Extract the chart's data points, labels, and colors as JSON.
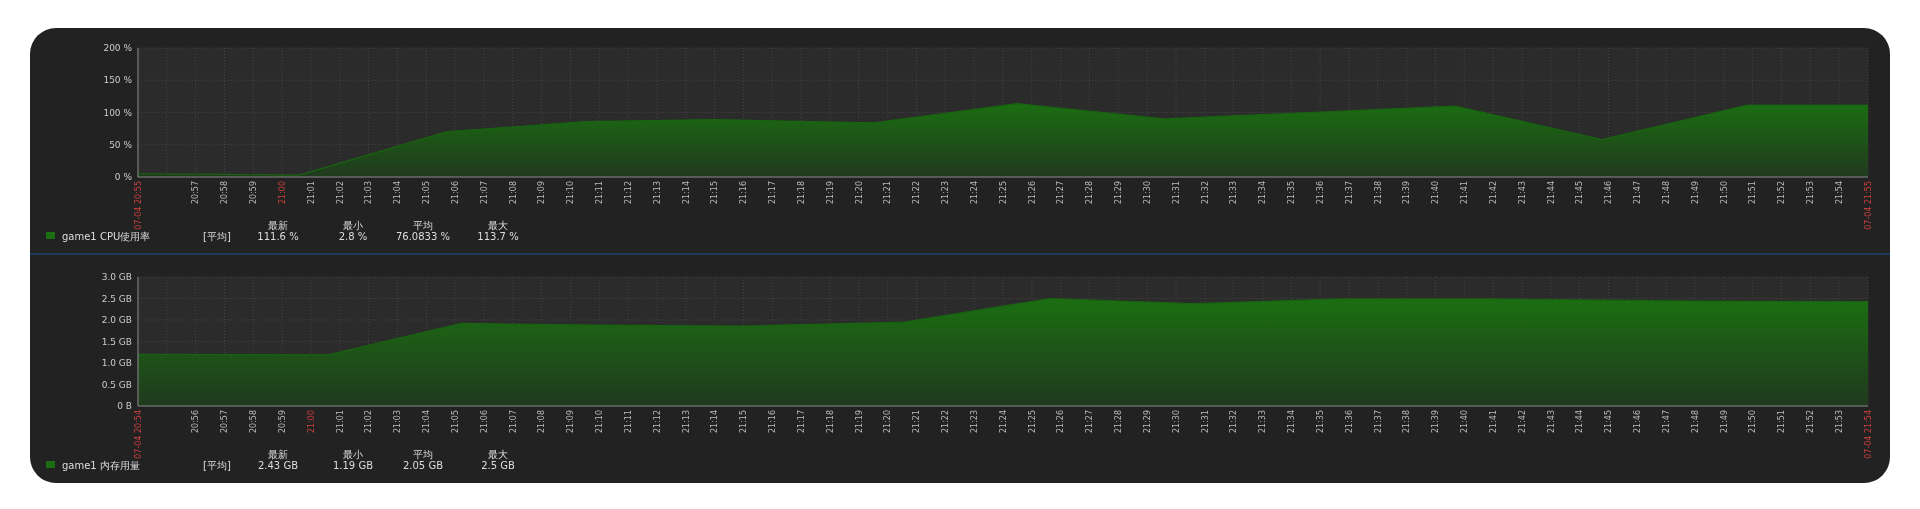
{
  "chart_data": [
    {
      "type": "area",
      "xlim": [
        20.9167,
        21.9167
      ],
      "ylim": [
        0,
        200
      ],
      "yticks": [
        {
          "value": 0,
          "label": "0 %"
        },
        {
          "value": 50,
          "label": "50 %"
        },
        {
          "value": 100,
          "label": "100 %"
        },
        {
          "value": 150,
          "label": "150 %"
        },
        {
          "value": 200,
          "label": "200 %"
        }
      ],
      "xticks": [
        {
          "value": 20.9167,
          "label": "07-04 20:55"
        },
        {
          "value": 20.9333,
          "label": null
        },
        {
          "value": 20.95,
          "label": "20:57"
        },
        {
          "value": 20.9667,
          "label": "20:58"
        },
        {
          "value": 20.9833,
          "label": "20:59"
        },
        {
          "value": 21,
          "label": "21:00"
        },
        {
          "value": 21.0167,
          "label": "21:01"
        },
        {
          "value": 21.0333,
          "label": "21:02"
        },
        {
          "value": 21.05,
          "label": "21:03"
        },
        {
          "value": 21.0667,
          "label": "21:04"
        },
        {
          "value": 21.0833,
          "label": "21:05"
        },
        {
          "value": 21.1,
          "label": "21:06"
        },
        {
          "value": 21.1167,
          "label": "21:07"
        },
        {
          "value": 21.1333,
          "label": "21:08"
        },
        {
          "value": 21.15,
          "label": "21:09"
        },
        {
          "value": 21.1667,
          "label": "21:10"
        },
        {
          "value": 21.1833,
          "label": "21:11"
        },
        {
          "value": 21.2,
          "label": "21:12"
        },
        {
          "value": 21.2167,
          "label": "21:13"
        },
        {
          "value": 21.2333,
          "label": "21:14"
        },
        {
          "value": 21.25,
          "label": "21:15"
        },
        {
          "value": 21.2667,
          "label": "21:16"
        },
        {
          "value": 21.2833,
          "label": "21:17"
        },
        {
          "value": 21.3,
          "label": "21:18"
        },
        {
          "value": 21.3167,
          "label": "21:19"
        },
        {
          "value": 21.3333,
          "label": "21:20"
        },
        {
          "value": 21.35,
          "label": "21:21"
        },
        {
          "value": 21.3667,
          "label": "21:22"
        },
        {
          "value": 21.3833,
          "label": "21:23"
        },
        {
          "value": 21.4,
          "label": "21:24"
        },
        {
          "value": 21.4167,
          "label": "21:25"
        },
        {
          "value": 21.4333,
          "label": "21:26"
        },
        {
          "value": 21.45,
          "label": "21:27"
        },
        {
          "value": 21.4667,
          "label": "21:28"
        },
        {
          "value": 21.4833,
          "label": "21:29"
        },
        {
          "value": 21.5,
          "label": "21:30"
        },
        {
          "value": 21.5167,
          "label": "21:31"
        },
        {
          "value": 21.5333,
          "label": "21:32"
        },
        {
          "value": 21.55,
          "label": "21:33"
        },
        {
          "value": 21.5667,
          "label": "21:34"
        },
        {
          "value": 21.5833,
          "label": "21:35"
        },
        {
          "value": 21.6,
          "label": "21:36"
        },
        {
          "value": 21.6167,
          "label": "21:37"
        },
        {
          "value": 21.6333,
          "label": "21:38"
        },
        {
          "value": 21.65,
          "label": "21:39"
        },
        {
          "value": 21.6667,
          "label": "21:40"
        },
        {
          "value": 21.6833,
          "label": "21:41"
        },
        {
          "value": 21.7,
          "label": "21:42"
        },
        {
          "value": 21.7167,
          "label": "21:43"
        },
        {
          "value": 21.7333,
          "label": "21:44"
        },
        {
          "value": 21.75,
          "label": "21:45"
        },
        {
          "value": 21.7667,
          "label": "21:46"
        },
        {
          "value": 21.7833,
          "label": "21:47"
        },
        {
          "value": 21.8,
          "label": "21:48"
        },
        {
          "value": 21.8167,
          "label": "21:49"
        },
        {
          "value": 21.8333,
          "label": "21:50"
        },
        {
          "value": 21.85,
          "label": "21:51"
        },
        {
          "value": 21.8667,
          "label": "21:52"
        },
        {
          "value": 21.8833,
          "label": "21:53"
        },
        {
          "value": 21.9,
          "label": "21:54"
        },
        {
          "value": 21.9167,
          "label": "07-04 21:55"
        }
      ],
      "grid": true,
      "legend": "bottom",
      "series": [
        {
          "name": "game1 CPU使用率",
          "color": "#1b6e12",
          "x": [
            20.9167,
            20.9667,
            21.01,
            21.095,
            21.175,
            21.25,
            21.342,
            21.425,
            21.51,
            21.678,
            21.763,
            21.847,
            21.9167
          ],
          "values": [
            5,
            4,
            2.8,
            70,
            86,
            89,
            84,
            113.7,
            90,
            110,
            58,
            111.6,
            111.6
          ]
        }
      ],
      "annotations": [
        "[平均]",
        "最新",
        "最小",
        "平均",
        "最大",
        "111.6 %",
        "2.8 %",
        "76.0833 %",
        "113.7 %"
      ]
    },
    {
      "type": "area",
      "xlim": [
        20.9,
        21.9
      ],
      "ylim": [
        0,
        3
      ],
      "yticks": [
        {
          "value": 0,
          "label": "0 B"
        },
        {
          "value": 0.5,
          "label": "0.5 GB"
        },
        {
          "value": 1,
          "label": "1.0 GB"
        },
        {
          "value": 1.5,
          "label": "1.5 GB"
        },
        {
          "value": 2,
          "label": "2.0 GB"
        },
        {
          "value": 2.5,
          "label": "2.5 GB"
        },
        {
          "value": 3,
          "label": "3.0 GB"
        }
      ],
      "xticks": [
        {
          "value": 20.9,
          "label": "07-04 20:54"
        },
        {
          "value": 20.9167,
          "label": null
        },
        {
          "value": 20.9333,
          "label": "20:56"
        },
        {
          "value": 20.95,
          "label": "20:57"
        },
        {
          "value": 20.9667,
          "label": "20:58"
        },
        {
          "value": 20.9833,
          "label": "20:59"
        },
        {
          "value": 21,
          "label": "21:00"
        },
        {
          "value": 21.0167,
          "label": "21:01"
        },
        {
          "value": 21.0333,
          "label": "21:02"
        },
        {
          "value": 21.05,
          "label": "21:03"
        },
        {
          "value": 21.0667,
          "label": "21:04"
        },
        {
          "value": 21.0833,
          "label": "21:05"
        },
        {
          "value": 21.1,
          "label": "21:06"
        },
        {
          "value": 21.1167,
          "label": "21:07"
        },
        {
          "value": 21.1333,
          "label": "21:08"
        },
        {
          "value": 21.15,
          "label": "21:09"
        },
        {
          "value": 21.1667,
          "label": "21:10"
        },
        {
          "value": 21.1833,
          "label": "21:11"
        },
        {
          "value": 21.2,
          "label": "21:12"
        },
        {
          "value": 21.2167,
          "label": "21:13"
        },
        {
          "value": 21.2333,
          "label": "21:14"
        },
        {
          "value": 21.25,
          "label": "21:15"
        },
        {
          "value": 21.2667,
          "label": "21:16"
        },
        {
          "value": 21.2833,
          "label": "21:17"
        },
        {
          "value": 21.3,
          "label": "21:18"
        },
        {
          "value": 21.3167,
          "label": "21:19"
        },
        {
          "value": 21.3333,
          "label": "21:20"
        },
        {
          "value": 21.35,
          "label": "21:21"
        },
        {
          "value": 21.3667,
          "label": "21:22"
        },
        {
          "value": 21.3833,
          "label": "21:23"
        },
        {
          "value": 21.4,
          "label": "21:24"
        },
        {
          "value": 21.4167,
          "label": "21:25"
        },
        {
          "value": 21.4333,
          "label": "21:26"
        },
        {
          "value": 21.45,
          "label": "21:27"
        },
        {
          "value": 21.4667,
          "label": "21:28"
        },
        {
          "value": 21.4833,
          "label": "21:29"
        },
        {
          "value": 21.5,
          "label": "21:30"
        },
        {
          "value": 21.5167,
          "label": "21:31"
        },
        {
          "value": 21.5333,
          "label": "21:32"
        },
        {
          "value": 21.55,
          "label": "21:33"
        },
        {
          "value": 21.5667,
          "label": "21:34"
        },
        {
          "value": 21.5833,
          "label": "21:35"
        },
        {
          "value": 21.6,
          "label": "21:36"
        },
        {
          "value": 21.6167,
          "label": "21:37"
        },
        {
          "value": 21.6333,
          "label": "21:38"
        },
        {
          "value": 21.65,
          "label": "21:39"
        },
        {
          "value": 21.6667,
          "label": "21:40"
        },
        {
          "value": 21.6833,
          "label": "21:41"
        },
        {
          "value": 21.7,
          "label": "21:42"
        },
        {
          "value": 21.7167,
          "label": "21:43"
        },
        {
          "value": 21.7333,
          "label": "21:44"
        },
        {
          "value": 21.75,
          "label": "21:45"
        },
        {
          "value": 21.7667,
          "label": "21:46"
        },
        {
          "value": 21.7833,
          "label": "21:47"
        },
        {
          "value": 21.8,
          "label": "21:48"
        },
        {
          "value": 21.8167,
          "label": "21:49"
        },
        {
          "value": 21.8333,
          "label": "21:50"
        },
        {
          "value": 21.85,
          "label": "21:51"
        },
        {
          "value": 21.8667,
          "label": "21:52"
        },
        {
          "value": 21.8833,
          "label": "21:53"
        },
        {
          "value": 21.9,
          "label": "07-04 21:54"
        }
      ],
      "grid": true,
      "legend": "bottom",
      "series": [
        {
          "name": "game1 内存用量",
          "color": "#1b6e12",
          "x": [
            20.9,
            21.01,
            21.087,
            21.167,
            21.25,
            21.343,
            21.427,
            21.51,
            21.595,
            21.683,
            21.75,
            21.8,
            21.9
          ],
          "values": [
            1.2,
            1.19,
            1.92,
            1.88,
            1.86,
            1.95,
            2.5,
            2.38,
            2.49,
            2.49,
            2.46,
            2.44,
            2.43
          ]
        }
      ],
      "annotations": [
        "[平均]",
        "最新",
        "最小",
        "平均",
        "最大",
        "2.43 GB",
        "1.19 GB",
        "2.05 GB",
        "2.5 GB"
      ]
    }
  ]
}
